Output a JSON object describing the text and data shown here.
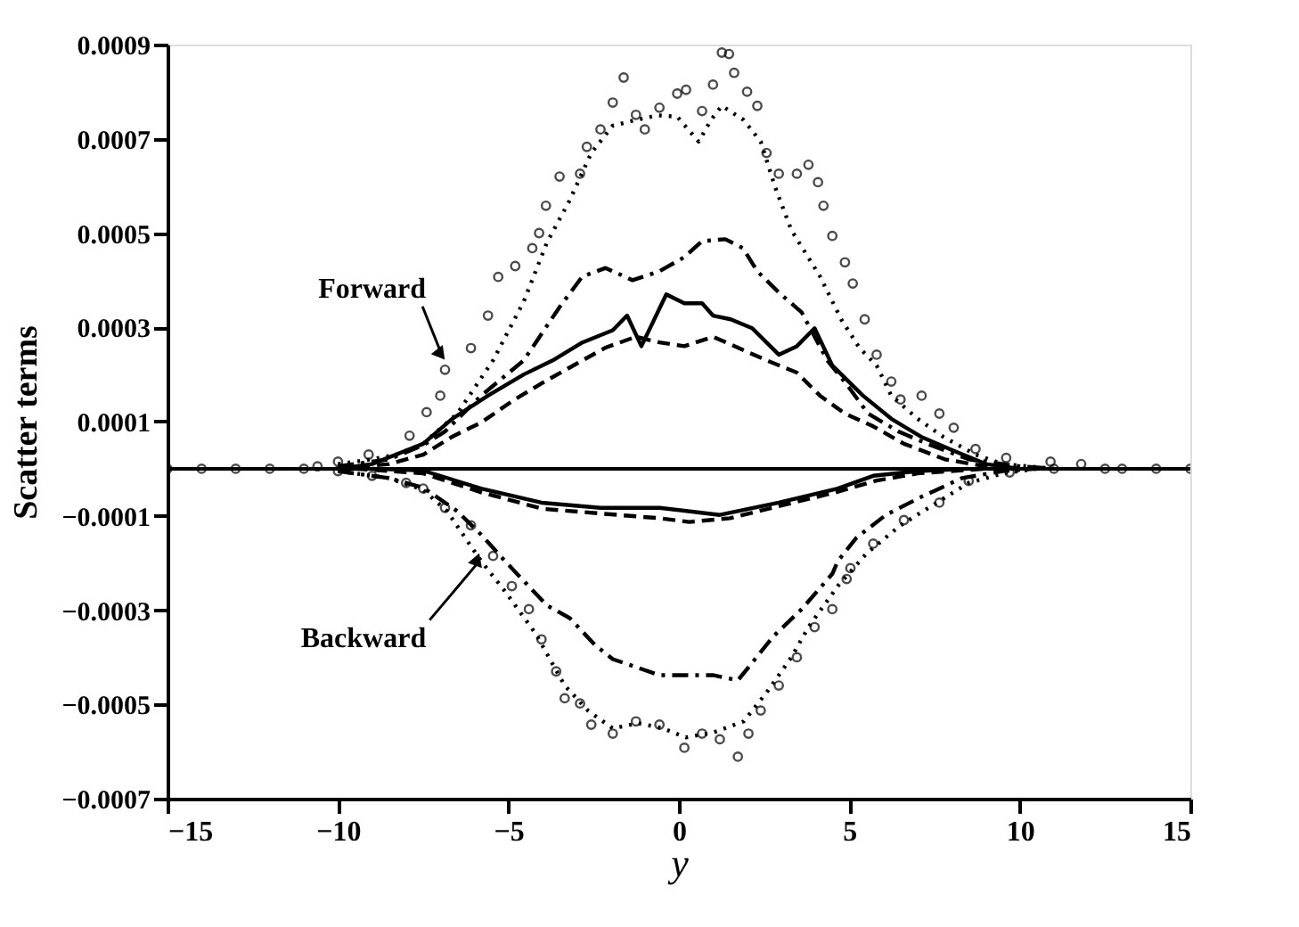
{
  "chart_data": {
    "type": "line",
    "xlabel": "y",
    "ylabel": "Scatter terms",
    "xlim": [
      -15,
      15
    ],
    "ylim": [
      -0.0007,
      0.0009
    ],
    "xticks": [
      -15,
      -10,
      -5,
      0,
      5,
      10,
      15
    ],
    "yticks": [
      -0.0007,
      -0.0005,
      -0.0003,
      -0.0001,
      0.0001,
      0.0003,
      0.0005,
      0.0007,
      0.0009
    ],
    "grid": false,
    "ref_lines": [
      {
        "axis": "y",
        "value": 0,
        "color": "#000000",
        "line_style": "solid"
      }
    ],
    "annotations": [
      {
        "text": "Forward",
        "x": -7.0,
        "y": 0.00025
      },
      {
        "text": "Backward",
        "x": -5.9,
        "y": -0.0002
      }
    ],
    "series": [
      {
        "type": "scatter",
        "marker": "circle",
        "color": "#000000",
        "x": [
          -15,
          -14,
          -13,
          -12,
          -11,
          -10.6,
          -10,
          -9.1,
          -7.9,
          -7.4,
          -7.0,
          -6.86,
          -6.1,
          -5.6,
          -5.3,
          -4.8,
          -4.3,
          -4.1,
          -3.9,
          -3.5,
          -2.9,
          -2.7,
          -2.3,
          -1.94,
          -1.62,
          -1.26,
          -1.0,
          -0.57,
          -0.05,
          0.21,
          0.68,
          1.0,
          1.26,
          1.47,
          1.62,
          2.0,
          2.3,
          2.57,
          2.93,
          3.46,
          3.8,
          4.08,
          4.24,
          4.5,
          4.87,
          5.1,
          5.45,
          5.8,
          6.23,
          6.5,
          7.12,
          7.64,
          8.06,
          8.7,
          9.6,
          10.9,
          11.8,
          12.5,
          13,
          14,
          15
        ],
        "values": [
          0,
          0,
          0,
          0,
          0,
          5e-06,
          1.5e-05,
          3e-05,
          7e-05,
          0.00012,
          0.000155,
          0.00021,
          0.000256,
          0.000325,
          0.000407,
          0.00043,
          0.000468,
          0.0005,
          0.000558,
          0.00062,
          0.000626,
          0.000683,
          0.00072,
          0.000777,
          0.00083,
          0.000751,
          0.00072,
          0.000766,
          0.000796,
          0.000804,
          0.000759,
          0.000815,
          0.000883,
          0.00088,
          0.00084,
          0.0008,
          0.00077,
          0.00067,
          0.000626,
          0.000626,
          0.000645,
          0.000608,
          0.000558,
          0.000494,
          0.000438,
          0.000393,
          0.000317,
          0.000242,
          0.000185,
          0.000147,
          0.000155,
          0.000117,
          8.7e-05,
          4.2e-05,
          2.3e-05,
          1.5e-05,
          1e-05,
          0,
          0,
          0,
          0
        ]
      },
      {
        "type": "line",
        "line_style": "dotted",
        "color": "#000000",
        "x": [
          -10,
          -9,
          -8.3,
          -7.5,
          -6.5,
          -5.45,
          -4.55,
          -3.87,
          -3.2,
          -2.57,
          -1.94,
          -1.26,
          -0.63,
          -0.05,
          0.58,
          0.94,
          1.26,
          1.9,
          2.4,
          2.83,
          3.3,
          4.14,
          4.76,
          5.29,
          5.8,
          6.23,
          7.0,
          7.75,
          8.7,
          9.5,
          11
        ],
        "values": [
          1e-05,
          2e-05,
          3e-05,
          5.3e-05,
          0.000117,
          0.00023,
          0.000355,
          0.00048,
          0.00057,
          0.00067,
          0.000728,
          0.00074,
          0.00075,
          0.000747,
          0.000694,
          0.00074,
          0.00077,
          0.00074,
          0.000694,
          0.000596,
          0.000506,
          0.000408,
          0.000317,
          0.000257,
          0.000219,
          0.000155,
          0.000106,
          6.8e-05,
          3e-05,
          1e-05,
          0
        ]
      },
      {
        "type": "line",
        "line_style": "dashdot",
        "color": "#000000",
        "x": [
          -10,
          -8.5,
          -7.5,
          -6.86,
          -5.8,
          -4.55,
          -3.5,
          -2.83,
          -2.15,
          -1.36,
          -0.57,
          0.16,
          0.68,
          1.36,
          1.88,
          2.3,
          2.93,
          3.6,
          4.35,
          4.9,
          5.55,
          6.44,
          7.28,
          8.5,
          10,
          11
        ],
        "values": [
          5e-06,
          2e-05,
          5e-05,
          7.9e-05,
          0.000155,
          0.00023,
          0.000343,
          0.000408,
          0.000426,
          0.0004,
          0.000419,
          0.000449,
          0.000483,
          0.000487,
          0.000468,
          0.000419,
          0.000374,
          0.000332,
          0.00023,
          0.000181,
          0.000117,
          7.9e-05,
          5.3e-05,
          2e-05,
          5e-06,
          0
        ]
      },
      {
        "type": "line",
        "line_style": "solid",
        "color": "#000000",
        "x": [
          -10,
          -9,
          -8.3,
          -7.5,
          -6.65,
          -5.6,
          -4.55,
          -3.7,
          -2.83,
          -1.94,
          -1.52,
          -1.1,
          -0.37,
          0.16,
          0.68,
          1.0,
          1.52,
          2.15,
          2.93,
          3.46,
          3.98,
          4.5,
          5.4,
          6.23,
          7.1,
          8.0,
          9,
          10
        ],
        "values": [
          0,
          1e-05,
          3e-05,
          5.3e-05,
          0.000106,
          0.000155,
          0.0002,
          0.00023,
          0.000268,
          0.000294,
          0.000325,
          0.00026,
          0.00037,
          0.000351,
          0.000351,
          0.000325,
          0.000317,
          0.000298,
          0.000242,
          0.00026,
          0.000298,
          0.000219,
          0.000155,
          0.000106,
          6.8e-05,
          4e-05,
          1e-05,
          0
        ]
      },
      {
        "type": "line",
        "line_style": "dashed",
        "color": "#000000",
        "x": [
          -10,
          -8.5,
          -7.5,
          -6.65,
          -5.8,
          -4.9,
          -4.03,
          -3.0,
          -2.15,
          -1.26,
          -0.57,
          0.16,
          1.0,
          1.73,
          2.57,
          3.46,
          4.14,
          4.87,
          5.7,
          6.6,
          7.8,
          9,
          10
        ],
        "values": [
          0,
          1e-05,
          3e-05,
          6.8e-05,
          9.8e-05,
          0.000143,
          0.000181,
          0.000223,
          0.000257,
          0.00028,
          0.000268,
          0.00026,
          0.00028,
          0.000257,
          0.00023,
          0.000204,
          0.000155,
          0.000117,
          9e-05,
          5.3e-05,
          2e-05,
          5e-06,
          0
        ]
      },
      {
        "type": "scatter",
        "marker": "circle",
        "color": "#000000",
        "x": [
          -10,
          -9,
          -8,
          -7.5,
          -6.86,
          -6.1,
          -5.45,
          -4.9,
          -4.4,
          -4.03,
          -3.6,
          -3.35,
          -2.9,
          -2.57,
          -1.94,
          -1.26,
          -0.57,
          0.16,
          0.68,
          1.2,
          1.73,
          2.04,
          2.4,
          2.93,
          3.46,
          3.98,
          4.5,
          4.92,
          5.03,
          5.7,
          6.6,
          7.64,
          8.5,
          9.7,
          11
        ],
        "values": [
          -5e-06,
          -1.5e-05,
          -3e-05,
          -4.2e-05,
          -8.3e-05,
          -0.00012,
          -0.000185,
          -0.000249,
          -0.000298,
          -0.000362,
          -0.00043,
          -0.000487,
          -0.000498,
          -0.000543,
          -0.000562,
          -0.000536,
          -0.000543,
          -0.000592,
          -0.000562,
          -0.000574,
          -0.000611,
          -0.000562,
          -0.000513,
          -0.00046,
          -0.0004,
          -0.000336,
          -0.000298,
          -0.000234,
          -0.000211,
          -0.000159,
          -0.000109,
          -7.2e-05,
          -2.6e-05,
          -8e-06,
          0
        ]
      },
      {
        "type": "line",
        "line_style": "dotted",
        "color": "#000000",
        "x": [
          -10,
          -8.5,
          -7.5,
          -6.8,
          -5.8,
          -5.1,
          -4.2,
          -3.35,
          -2.67,
          -1.94,
          -1.2,
          -0.5,
          0.2,
          1.0,
          1.9,
          2.57,
          3.3,
          3.8,
          4.66,
          5.5,
          6.5,
          7.5,
          8.5,
          9.5,
          10.5
        ],
        "values": [
          -5e-06,
          -2e-05,
          -4.5e-05,
          -9e-05,
          -0.000196,
          -0.00026,
          -0.00035,
          -0.00046,
          -0.000513,
          -0.000551,
          -0.00054,
          -0.00055,
          -0.00057,
          -0.00056,
          -0.000536,
          -0.000475,
          -0.0004,
          -0.000336,
          -0.000249,
          -0.00018,
          -0.00012,
          -7.5e-05,
          -3e-05,
          -1e-05,
          0
        ]
      },
      {
        "type": "line",
        "line_style": "dashdot",
        "color": "#000000",
        "x": [
          -10,
          -8.5,
          -7.5,
          -6.5,
          -5.8,
          -5.1,
          -3.87,
          -3.2,
          -2.46,
          -1.94,
          -0.57,
          1.0,
          1.73,
          2.78,
          3.6,
          4.5,
          4.66,
          5.2,
          6.07,
          7.1,
          8.3,
          9.5,
          10.5
        ],
        "values": [
          -5e-06,
          -2e-05,
          -4e-05,
          -9e-05,
          -0.00014,
          -0.000196,
          -0.00029,
          -0.000317,
          -0.000374,
          -0.000404,
          -0.000438,
          -0.000438,
          -0.000449,
          -0.000355,
          -0.000298,
          -0.000223,
          -0.000196,
          -0.000147,
          -9.8e-05,
          -6e-05,
          -2e-05,
          -5e-06,
          0
        ]
      },
      {
        "type": "line",
        "line_style": "solid",
        "color": "#000000",
        "x": [
          -9,
          -8,
          -7.5,
          -5.8,
          -4.03,
          -2.3,
          -0.57,
          1.2,
          2.93,
          4.66,
          5.7,
          7,
          8.5
        ],
        "values": [
          0,
          -2e-06,
          -4e-06,
          -4.2e-05,
          -7.2e-05,
          -8.3e-05,
          -8.3e-05,
          -9.8e-05,
          -7.2e-05,
          -4.2e-05,
          -1.5e-05,
          -5e-06,
          0
        ]
      },
      {
        "type": "line",
        "line_style": "dashed",
        "color": "#000000",
        "x": [
          -9.5,
          -7.5,
          -5.8,
          -4,
          -2.3,
          -0.57,
          0.3,
          1.5,
          2.9,
          4.6,
          5.8,
          7,
          9
        ],
        "values": [
          0,
          -1e-05,
          -5e-05,
          -8.5e-05,
          -9.5e-05,
          -0.000105,
          -0.000113,
          -0.000105,
          -8e-05,
          -5e-05,
          -2.5e-05,
          -1e-05,
          0
        ]
      }
    ]
  }
}
